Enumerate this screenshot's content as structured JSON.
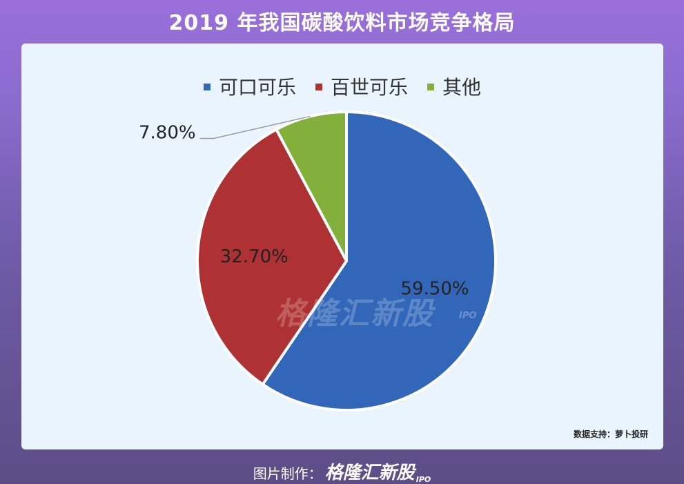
{
  "title": "2019 年我国碳酸饮料市场竞争格局",
  "legend": [
    {
      "label": "可口可乐",
      "color": "#3166b8"
    },
    {
      "label": "百世可乐",
      "color": "#ae3133"
    },
    {
      "label": "其他",
      "color": "#82b03a"
    }
  ],
  "chart_data": {
    "type": "pie",
    "title": "2019 年我国碳酸饮料市场竞争格局",
    "slices": [
      {
        "name": "可口可乐",
        "value": 59.5,
        "label": "59.50%",
        "color": "#3166b8"
      },
      {
        "name": "百世可乐",
        "value": 32.7,
        "label": "32.70%",
        "color": "#ae3133"
      },
      {
        "name": "其他",
        "value": 7.8,
        "label": "7.80%",
        "color": "#82b03a"
      }
    ],
    "legend_position": "top"
  },
  "source": "数据支持：萝卜投研",
  "watermark": {
    "brand": "格隆汇新股",
    "sub": "IPO"
  },
  "footer": {
    "prefix": "图片制作：",
    "brand": "格隆汇新股",
    "sub": "IPO"
  }
}
